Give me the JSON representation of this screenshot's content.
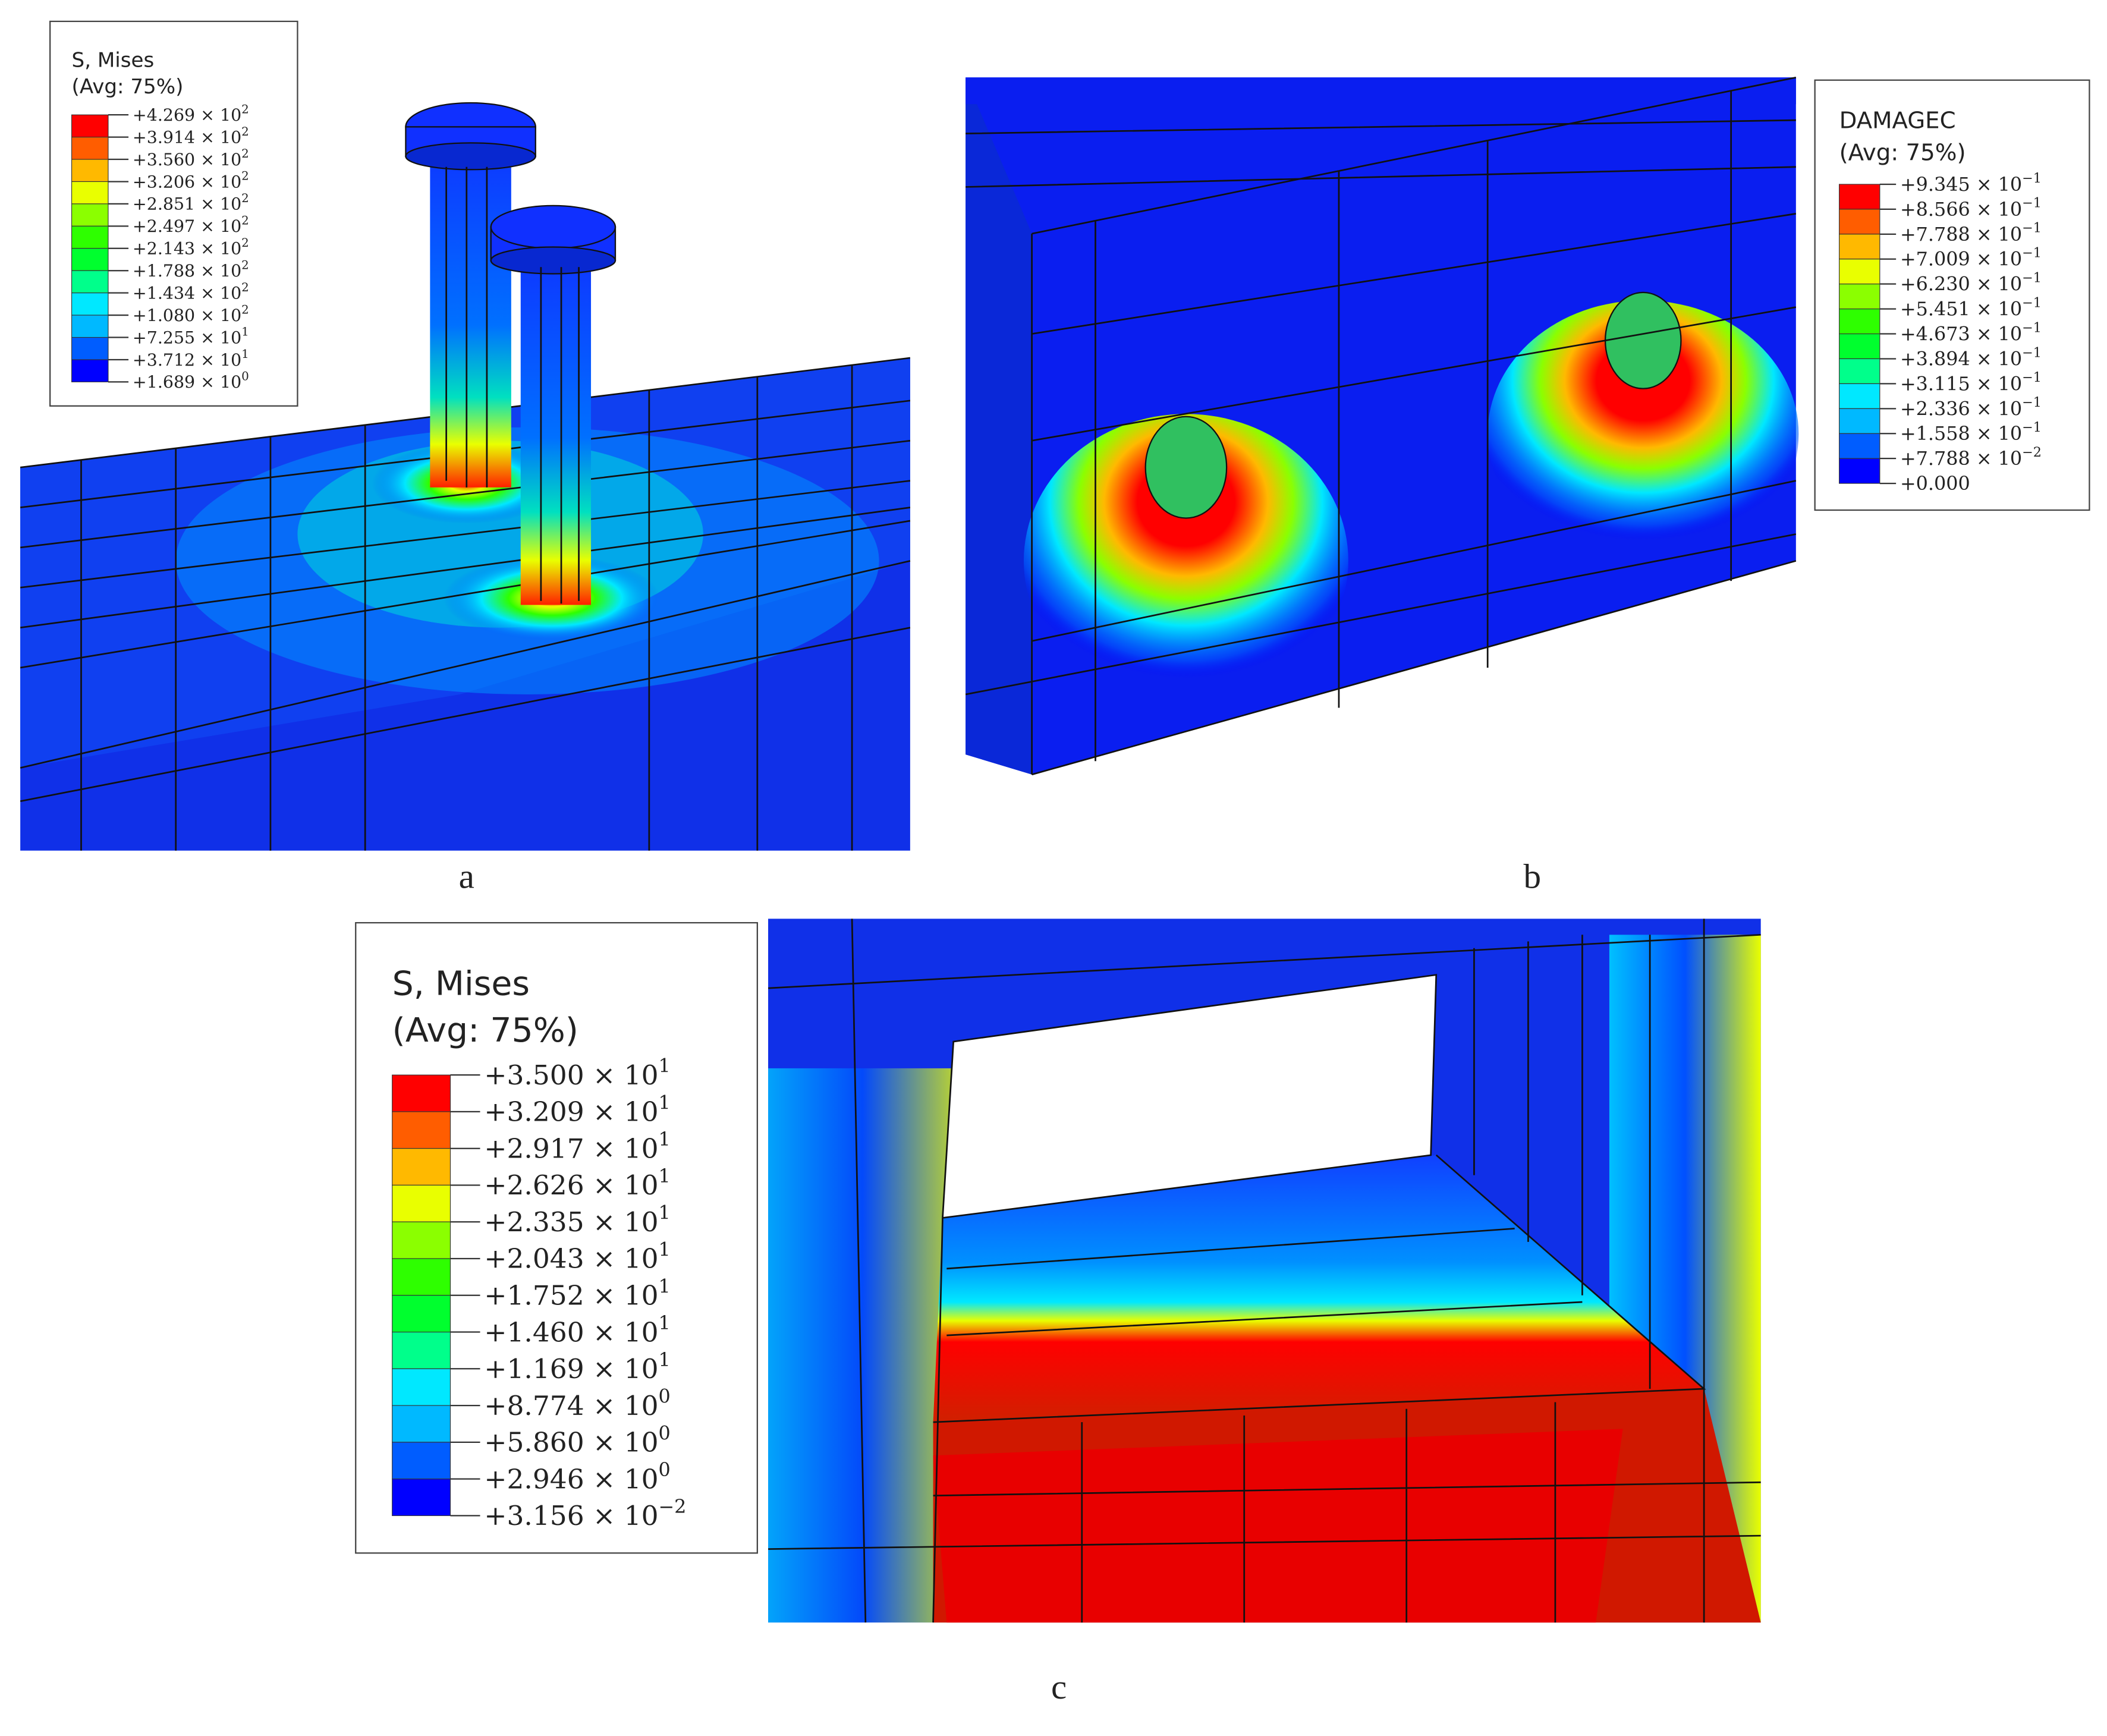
{
  "panels": [
    {
      "caption": "a",
      "legend": {
        "title": "S, Mises",
        "subtitle": "(Avg: 75%)",
        "entries": [
          {
            "base": "+4.269 × 10",
            "exp": "2"
          },
          {
            "base": "+3.914 × 10",
            "exp": "2"
          },
          {
            "base": "+3.560 × 10",
            "exp": "2"
          },
          {
            "base": "+3.206 × 10",
            "exp": "2"
          },
          {
            "base": "+2.851 × 10",
            "exp": "2"
          },
          {
            "base": "+2.497 × 10",
            "exp": "2"
          },
          {
            "base": "+2.143 × 10",
            "exp": "2"
          },
          {
            "base": "+1.788 × 10",
            "exp": "2"
          },
          {
            "base": "+1.434 × 10",
            "exp": "2"
          },
          {
            "base": "+1.080 × 10",
            "exp": "2"
          },
          {
            "base": "+7.255 × 10",
            "exp": "1"
          },
          {
            "base": "+3.712 × 10",
            "exp": "1"
          },
          {
            "base": "+1.689 × 10",
            "exp": "0"
          }
        ]
      }
    },
    {
      "caption": "b",
      "legend": {
        "title": "DAMAGEC",
        "subtitle": "(Avg: 75%)",
        "entries": [
          {
            "base": "+9.345 × 10",
            "exp": "−1"
          },
          {
            "base": "+8.566 × 10",
            "exp": "−1"
          },
          {
            "base": "+7.788 × 10",
            "exp": "−1"
          },
          {
            "base": "+7.009 × 10",
            "exp": "−1"
          },
          {
            "base": "+6.230 × 10",
            "exp": "−1"
          },
          {
            "base": "+5.451 × 10",
            "exp": "−1"
          },
          {
            "base": "+4.673 × 10",
            "exp": "−1"
          },
          {
            "base": "+3.894 × 10",
            "exp": "−1"
          },
          {
            "base": "+3.115 × 10",
            "exp": "−1"
          },
          {
            "base": "+2.336 × 10",
            "exp": "−1"
          },
          {
            "base": "+1.558 × 10",
            "exp": "−1"
          },
          {
            "base": "+7.788 × 10",
            "exp": "−2"
          },
          {
            "base": "+0.000"
          }
        ]
      }
    },
    {
      "caption": "c",
      "legend": {
        "title": "S, Mises",
        "subtitle": "(Avg: 75%)",
        "entries": [
          {
            "base": "+3.500 × 10",
            "exp": "1"
          },
          {
            "base": "+3.209 × 10",
            "exp": "1"
          },
          {
            "base": "+2.917 × 10",
            "exp": "1"
          },
          {
            "base": "+2.626 × 10",
            "exp": "1"
          },
          {
            "base": "+2.335 × 10",
            "exp": "1"
          },
          {
            "base": "+2.043 × 10",
            "exp": "1"
          },
          {
            "base": "+1.752 × 10",
            "exp": "1"
          },
          {
            "base": "+1.460 × 10",
            "exp": "1"
          },
          {
            "base": "+1.169 × 10",
            "exp": "1"
          },
          {
            "base": "+8.774 × 10",
            "exp": "0"
          },
          {
            "base": "+5.860 × 10",
            "exp": "0"
          },
          {
            "base": "+2.946 × 10",
            "exp": "0"
          },
          {
            "base": "+3.156 × 10",
            "exp": "−2"
          }
        ]
      }
    }
  ]
}
